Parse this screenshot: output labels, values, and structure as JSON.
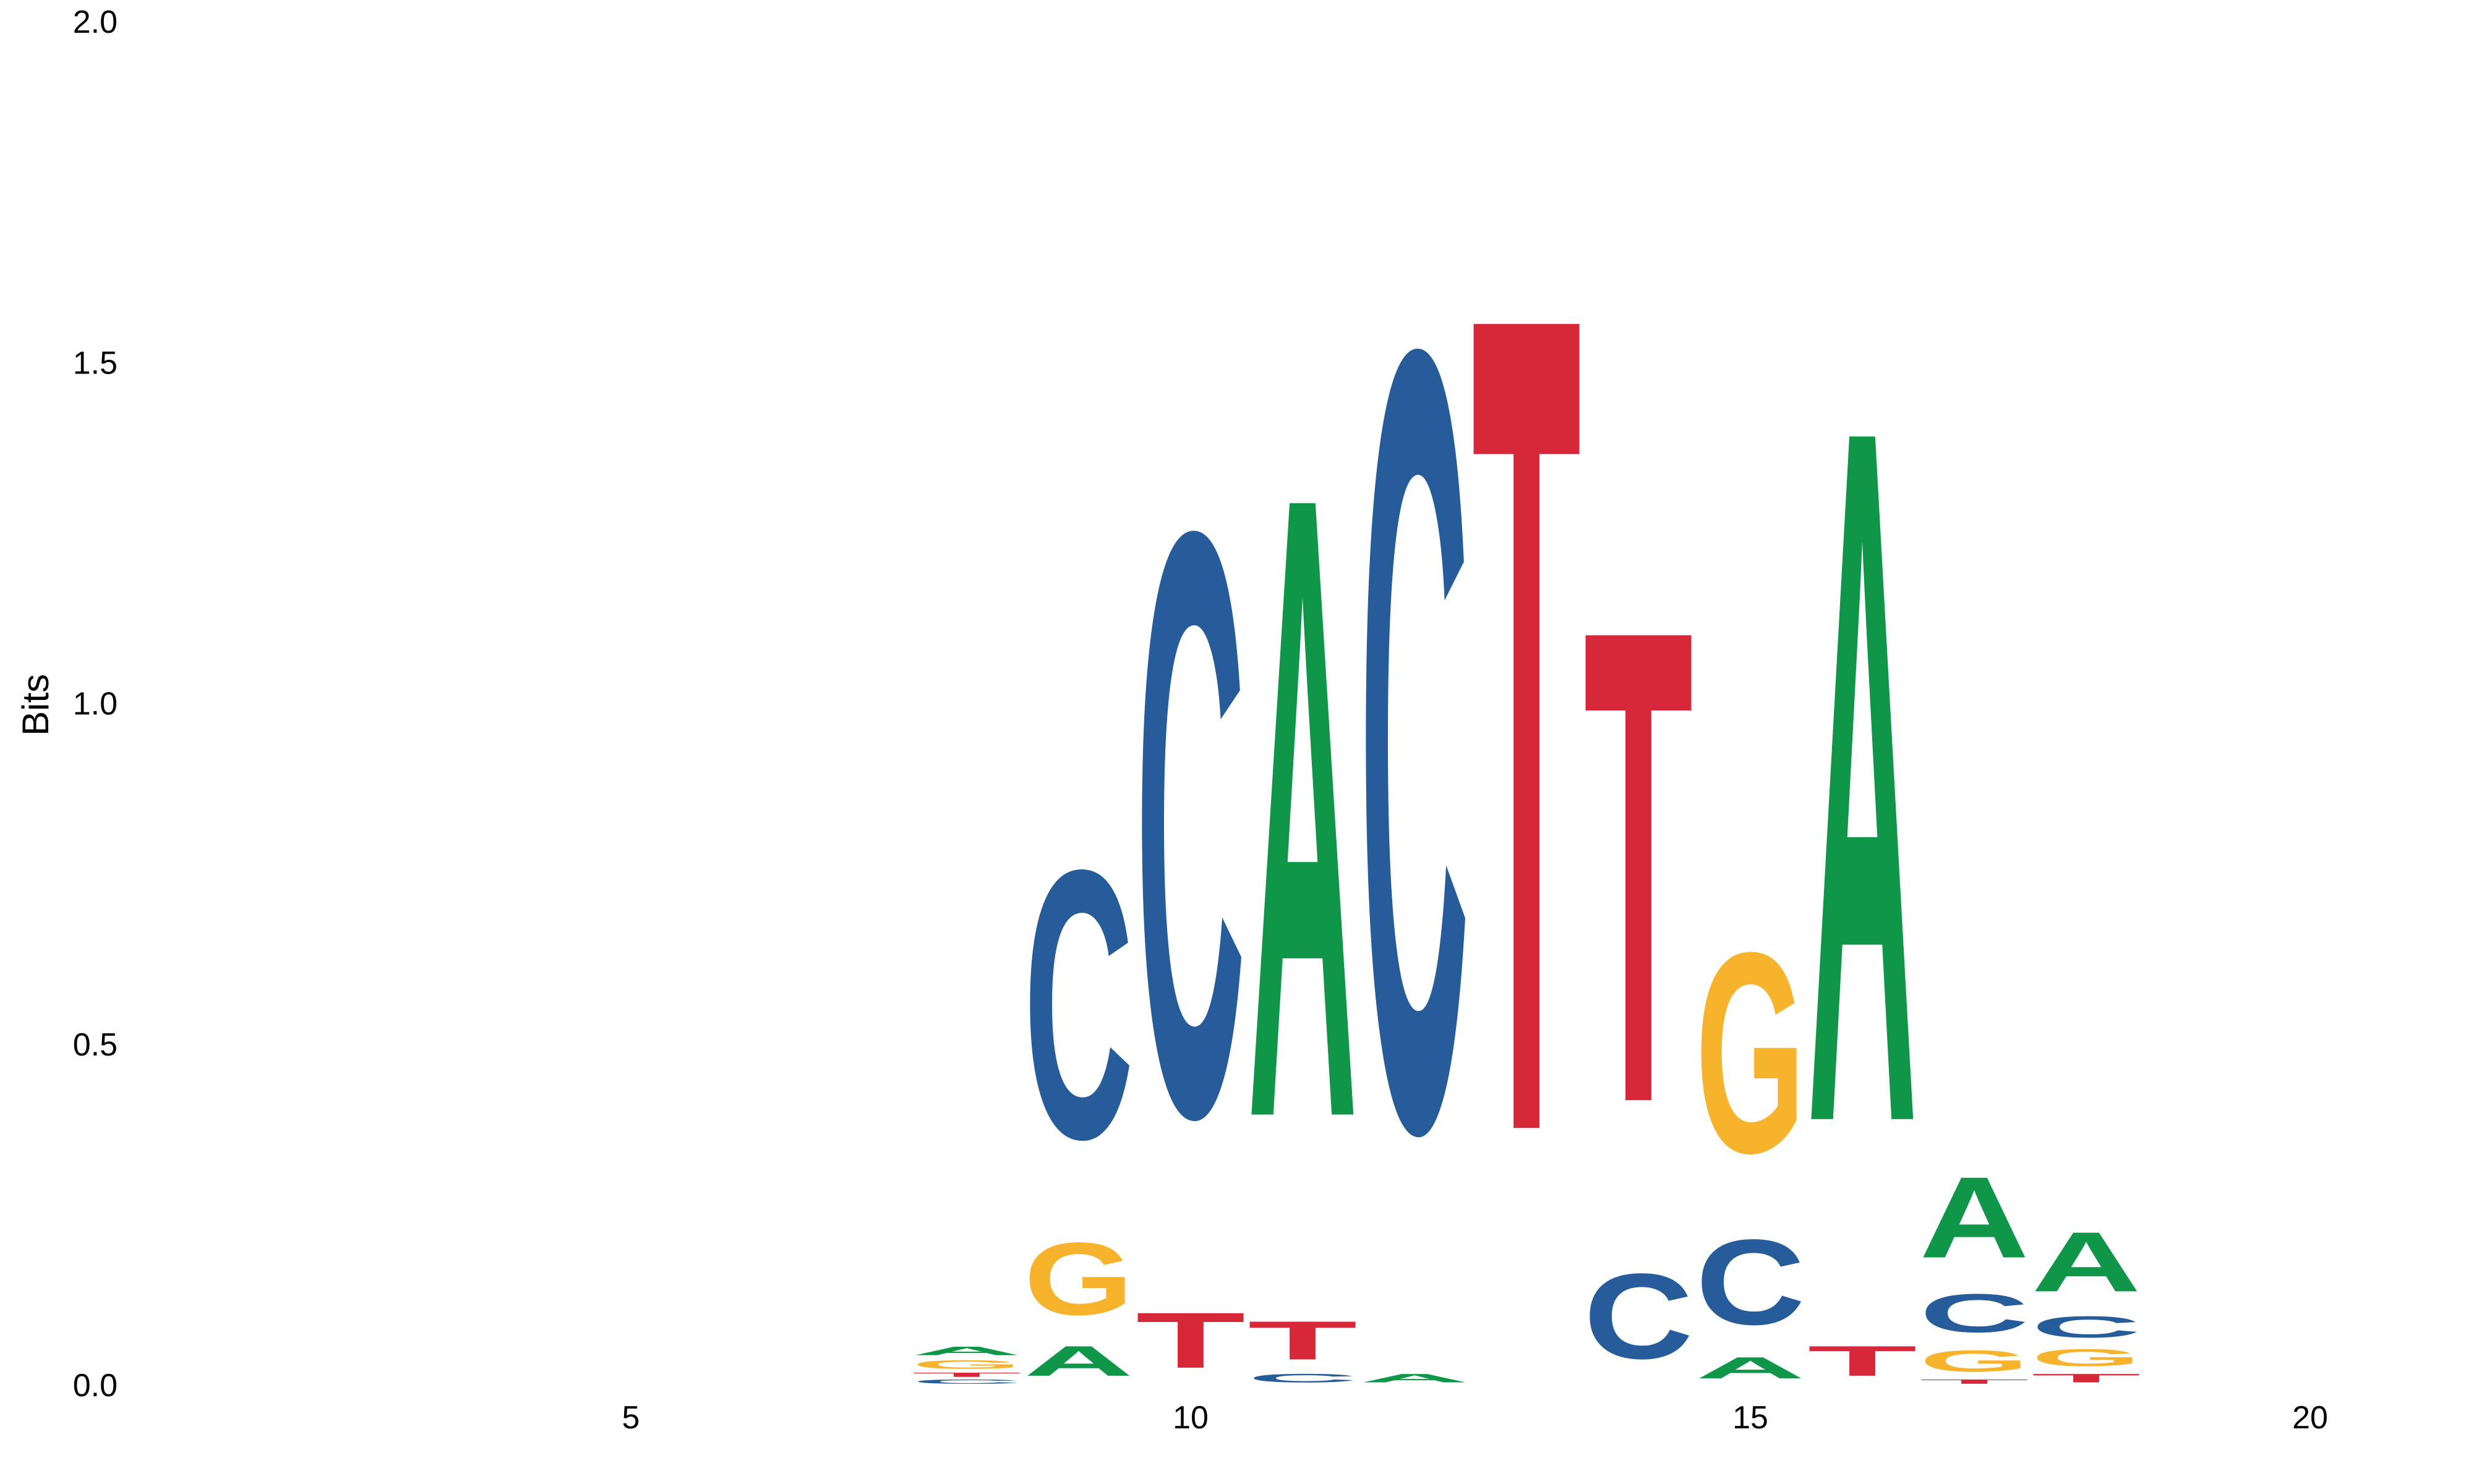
{
  "chart_data": {
    "type": "sequence-logo",
    "title": "",
    "xlabel": "",
    "ylabel": "Bits",
    "xlim": [
      0,
      22
    ],
    "ylim": [
      0,
      2.0
    ],
    "x_ticks": [
      5,
      10,
      15,
      20
    ],
    "y_ticks": [
      "0.0",
      "0.5",
      "1.0",
      "1.5",
      "2.0"
    ],
    "grid": false,
    "colors": {
      "A": "#109648",
      "C": "#255c99",
      "G": "#f7b32b",
      "T": "#d62839"
    },
    "positions": [
      {
        "x": 8,
        "letters": [
          {
            "base": "C",
            "bits": 0.01
          },
          {
            "base": "T",
            "bits": 0.01
          },
          {
            "base": "G",
            "bits": 0.02
          },
          {
            "base": "A",
            "bits": 0.02
          }
        ]
      },
      {
        "x": 9,
        "letters": [
          {
            "base": "A",
            "bits": 0.07
          },
          {
            "base": "G",
            "bits": 0.17
          },
          {
            "base": "C",
            "bits": 0.63
          }
        ]
      },
      {
        "x": 10,
        "letters": [
          {
            "base": "T",
            "bits": 0.13
          },
          {
            "base": "C",
            "bits": 1.37
          }
        ]
      },
      {
        "x": 11,
        "letters": [
          {
            "base": "C",
            "bits": 0.02
          },
          {
            "base": "T",
            "bits": 0.09
          },
          {
            "base": "A",
            "bits": 1.46
          }
        ]
      },
      {
        "x": 12,
        "letters": [
          {
            "base": "A",
            "bits": 0.02
          },
          {
            "base": "C",
            "bits": 1.83
          }
        ]
      },
      {
        "x": 13,
        "letters": [
          {
            "base": "T",
            "bits": 1.92
          }
        ]
      },
      {
        "x": 14,
        "letters": [
          {
            "base": "C",
            "bits": 0.2
          },
          {
            "base": "T",
            "bits": 1.11
          }
        ]
      },
      {
        "x": 15,
        "letters": [
          {
            "base": "A",
            "bits": 0.05
          },
          {
            "base": "C",
            "bits": 0.2
          },
          {
            "base": "G",
            "bits": 0.47
          }
        ]
      },
      {
        "x": 16,
        "letters": [
          {
            "base": "T",
            "bits": 0.07
          },
          {
            "base": "A",
            "bits": 1.63
          }
        ]
      },
      {
        "x": 17,
        "letters": [
          {
            "base": "T",
            "bits": 0.01
          },
          {
            "base": "G",
            "bits": 0.05
          },
          {
            "base": "C",
            "bits": 0.09
          },
          {
            "base": "A",
            "bits": 0.19
          }
        ]
      },
      {
        "x": 18,
        "letters": [
          {
            "base": "T",
            "bits": 0.02
          },
          {
            "base": "G",
            "bits": 0.04
          },
          {
            "base": "C",
            "bits": 0.05
          },
          {
            "base": "A",
            "bits": 0.14
          }
        ]
      }
    ]
  }
}
